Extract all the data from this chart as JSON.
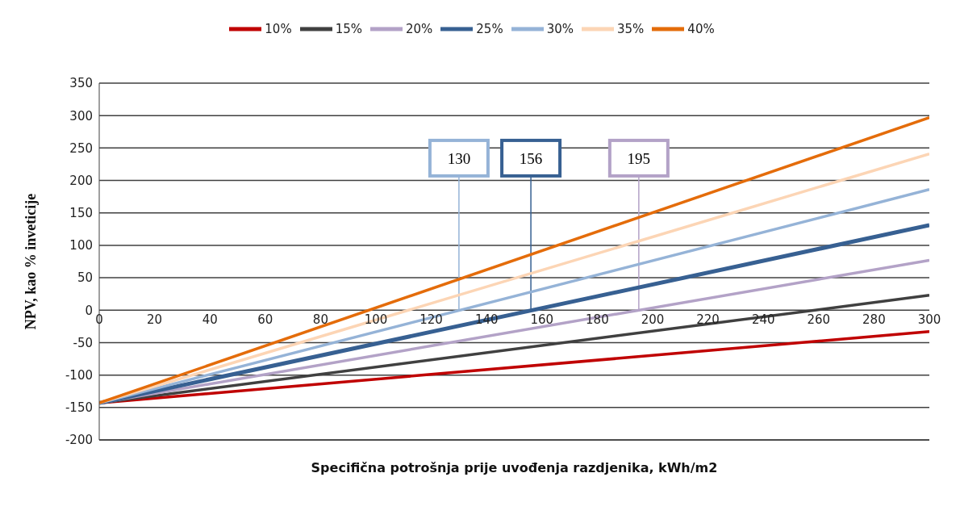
{
  "chart_data": {
    "type": "line",
    "xlabel": "Specifična  potrošnja prije uvođenja  razdjenika, kWh/m2",
    "ylabel": "NPV, kao % inveticije",
    "xlim": [
      0,
      300
    ],
    "xticks": [
      0,
      20,
      40,
      60,
      80,
      100,
      120,
      140,
      160,
      180,
      200,
      220,
      240,
      260,
      280,
      300
    ],
    "ylim": [
      -200,
      350
    ],
    "yticks": [
      -200,
      -150,
      -100,
      -50,
      0,
      50,
      100,
      150,
      200,
      250,
      300,
      350
    ],
    "grid": "y",
    "legend": "top",
    "marker": "none",
    "line_style": "solid",
    "x": [
      0,
      300
    ],
    "series": [
      {
        "name": "10%",
        "color": "#c00000",
        "values": [
          -143,
          -33
        ]
      },
      {
        "name": "15%",
        "color": "#404040",
        "values": [
          -143,
          23
        ]
      },
      {
        "name": "20%",
        "color": "#b3a2c7",
        "values": [
          -143,
          77
        ]
      },
      {
        "name": "25%",
        "color": "#376092",
        "values": [
          -143,
          131
        ]
      },
      {
        "name": "30%",
        "color": "#95b3d7",
        "values": [
          -143,
          186
        ]
      },
      {
        "name": "35%",
        "color": "#fcd5b5",
        "values": [
          -143,
          241
        ]
      },
      {
        "name": "40%",
        "color": "#e46c0a",
        "values": [
          -143,
          297
        ]
      }
    ],
    "ref_lines": [
      {
        "axis": "x",
        "value": 130,
        "label": "130",
        "color": "#95b3d7"
      },
      {
        "axis": "x",
        "value": 156,
        "label": "156",
        "color": "#376092"
      },
      {
        "axis": "x",
        "value": 195,
        "label": "195",
        "color": "#b3a2c7"
      }
    ]
  }
}
